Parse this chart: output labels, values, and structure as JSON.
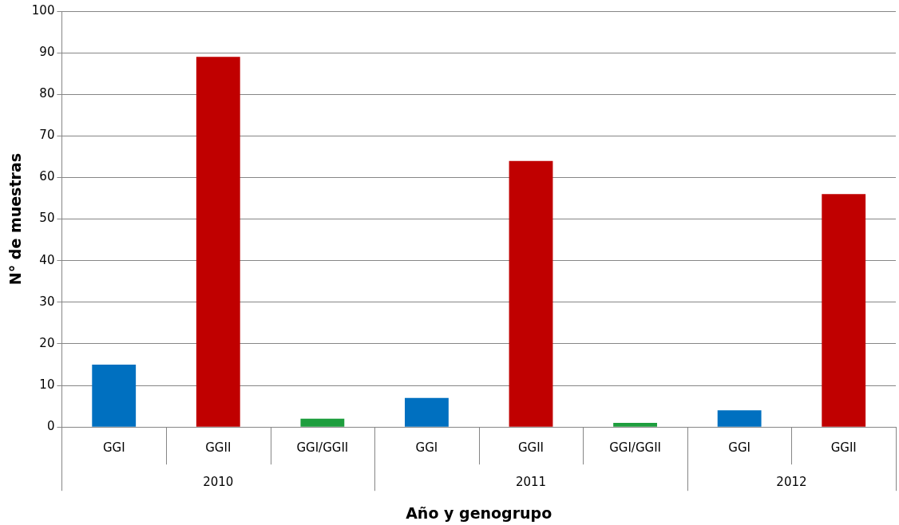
{
  "chart_data": {
    "type": "bar",
    "xlabel": "Año y genogrupo",
    "ylabel": "N° de muestras",
    "categories": [
      "GGI",
      "GGII",
      "GGI/GGII",
      "GGI",
      "GGII",
      "GGI/GGII",
      "GGI",
      "GGII"
    ],
    "values": [
      15,
      89,
      2,
      7,
      64,
      1,
      4,
      56
    ],
    "colors": [
      "#0070c0",
      "#c00000",
      "#1e9e3e",
      "#0070c0",
      "#c00000",
      "#1e9e3e",
      "#0070c0",
      "#c00000"
    ],
    "ylim": [
      0,
      100
    ],
    "yticks": [
      0,
      10,
      20,
      30,
      40,
      50,
      60,
      70,
      80,
      90,
      100
    ],
    "annotations": [
      "2010",
      "2011",
      "2012"
    ],
    "grid": "y",
    "legend": false
  }
}
